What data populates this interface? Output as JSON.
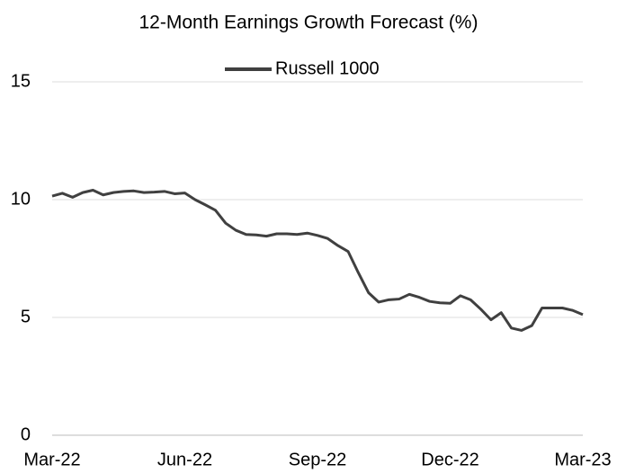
{
  "chart_data": {
    "type": "line",
    "title": "12-Month Earnings Growth Forecast (%)",
    "categories": [
      "Mar-22",
      null,
      null,
      null,
      null,
      null,
      null,
      null,
      null,
      null,
      null,
      null,
      null,
      "Jun-22",
      null,
      null,
      null,
      null,
      null,
      null,
      null,
      null,
      null,
      null,
      null,
      null,
      "Sep-22",
      null,
      null,
      null,
      null,
      null,
      null,
      null,
      null,
      null,
      null,
      null,
      null,
      "Dec-22",
      null,
      null,
      null,
      null,
      null,
      null,
      null,
      null,
      null,
      null,
      null,
      null,
      "Mar-23"
    ],
    "series": [
      {
        "name": "Russell 1000",
        "color": "#404040",
        "values": [
          10.15,
          10.27,
          10.1,
          10.3,
          10.4,
          10.2,
          10.3,
          10.35,
          10.37,
          10.3,
          10.32,
          10.35,
          10.25,
          10.28,
          10.0,
          9.78,
          9.55,
          9.0,
          8.7,
          8.52,
          8.5,
          8.45,
          8.55,
          8.55,
          8.52,
          8.58,
          8.48,
          8.35,
          8.05,
          7.8,
          6.9,
          6.05,
          5.65,
          5.75,
          5.78,
          5.98,
          5.85,
          5.68,
          5.62,
          5.6,
          5.92,
          5.75,
          5.35,
          4.9,
          5.2,
          4.55,
          4.45,
          4.65,
          5.4,
          5.4,
          5.4,
          5.3,
          5.12
        ]
      }
    ],
    "ylim": [
      0,
      15
    ],
    "yticks": [
      0,
      5,
      10,
      15
    ],
    "grid": true,
    "legend": "top"
  }
}
